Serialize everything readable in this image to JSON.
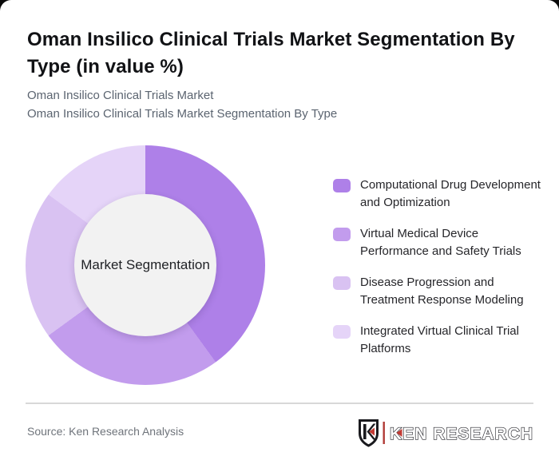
{
  "page": {
    "title": "Oman Insilico Clinical Trials Market Segmentation By Type (in value %)",
    "subtitle_line1": "Oman Insilico Clinical Trials Market",
    "subtitle_line2": "Oman Insilico Clinical Trials Market Segmentation By Type",
    "source": "Source: Ken Research Analysis",
    "logo": {
      "mark_letter": "K",
      "wordmark": "KEN RESEARCH",
      "accent_color": "#c23a33",
      "outline_color": "#1a1a1e"
    }
  },
  "chart_data": {
    "type": "pie",
    "subtype": "donut",
    "title": "Oman Insilico Clinical Trials Market Segmentation By Type (in value %)",
    "center_label": "Market Segmentation",
    "start_angle_deg": 0,
    "direction": "clockwise",
    "legend_position": "right",
    "values_shown_on_chart": false,
    "hole_color": "#f2f2f2",
    "segments": [
      {
        "label": "Computational Drug Development and Optimization",
        "value_pct": 40,
        "color": "#ae80e8"
      },
      {
        "label": "Virtual Medical Device Performance and Safety Trials",
        "value_pct": 25,
        "color": "#c29ced"
      },
      {
        "label": "Disease Progression and Treatment Response Modeling",
        "value_pct": 20,
        "color": "#d9c2f2"
      },
      {
        "label": "Integrated Virtual Clinical Trial Platforms",
        "value_pct": 15,
        "color": "#e5d4f8"
      }
    ]
  }
}
